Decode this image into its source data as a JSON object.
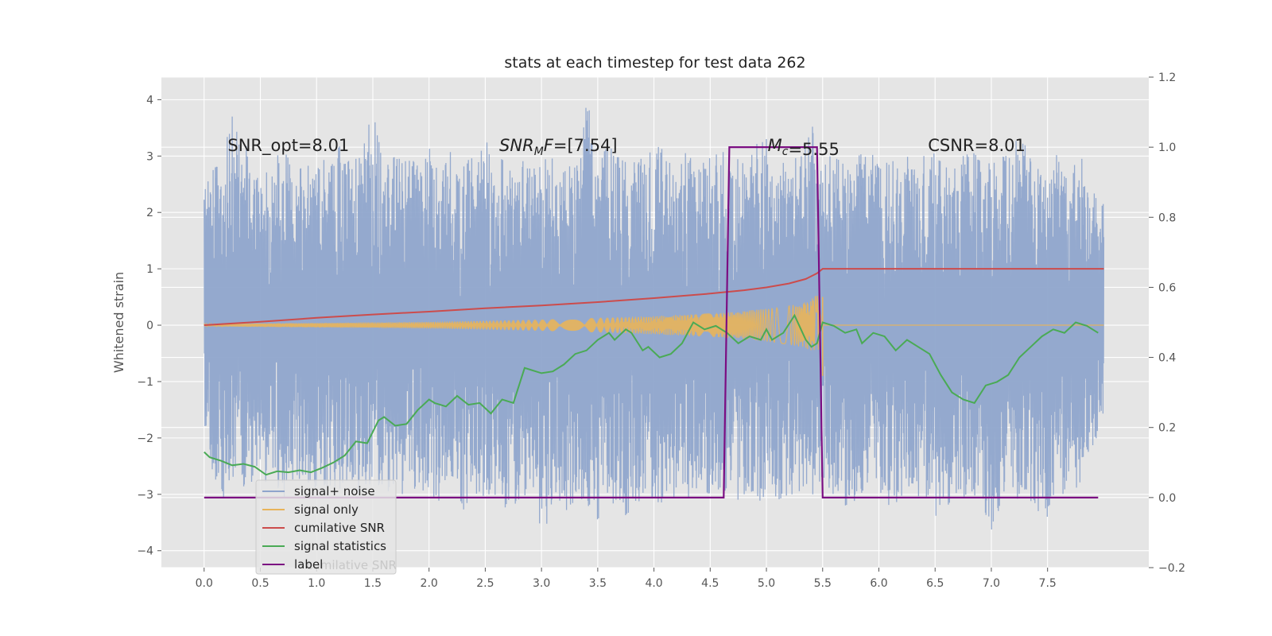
{
  "chart_data": {
    "type": "line",
    "title": "stats at each timestep for test data 262",
    "ylabel": "Whitened strain",
    "xlim": [
      -0.38,
      8.4
    ],
    "xticks": [
      0.0,
      0.5,
      1.0,
      1.5,
      2.0,
      2.5,
      3.0,
      3.5,
      4.0,
      4.5,
      5.0,
      5.5,
      6.0,
      6.5,
      7.0,
      7.5
    ],
    "xtick_labels": [
      "0.0",
      "0.5",
      "1.0",
      "1.5",
      "2.0",
      "2.5",
      "3.0",
      "3.5",
      "4.0",
      "4.5",
      "5.0",
      "5.5",
      "6.0",
      "6.5",
      "7.0",
      "7.5"
    ],
    "ylim_left": [
      -4.3,
      4.4
    ],
    "yticks_left": [
      -4,
      -3,
      -2,
      -1,
      0,
      1,
      2,
      3,
      4
    ],
    "ytick_labels_left": [
      "−4",
      "−3",
      "−2",
      "−1",
      "0",
      "1",
      "2",
      "3",
      "4"
    ],
    "ylim_right": [
      -0.2,
      1.2
    ],
    "yticks_right": [
      -0.2,
      0.0,
      0.2,
      0.4,
      0.6,
      0.8,
      1.0,
      1.2
    ],
    "ytick_labels_right": [
      "−0.2",
      "0.0",
      "0.2",
      "0.4",
      "0.6",
      "0.8",
      "1.0",
      "1.2"
    ],
    "grid": true,
    "legend_position": "lower-left",
    "annotations": [
      {
        "text": "SNR_opt=8.01",
        "x": 0.75,
        "y": 3.2
      },
      {
        "text": "SNR_MF=[7.54]",
        "x": 3.15,
        "y": 3.2,
        "math": true
      },
      {
        "text": "M_c=5.55",
        "x": 5.33,
        "y": 3.2,
        "math": true
      },
      {
        "text": "CSNR=8.01",
        "x": 6.87,
        "y": 3.2
      }
    ],
    "legend_hidden_text": "cumilative SNR",
    "series": [
      {
        "name": "signal+ noise",
        "axis": "left",
        "color": "#8fa5cc",
        "description_x_range": [
          0.0,
          8.0
        ],
        "x": [
          0.0,
          0.1,
          0.2,
          0.3,
          0.4,
          0.5,
          0.6,
          0.7,
          0.8,
          0.9,
          1.0,
          1.1,
          1.2,
          1.3,
          1.4,
          1.5,
          1.6,
          1.7,
          1.8,
          1.9,
          2.0,
          2.1,
          2.2,
          2.3,
          2.4,
          2.5,
          2.6,
          2.7,
          2.8,
          2.9,
          3.0,
          3.1,
          3.2,
          3.3,
          3.4,
          3.5,
          3.6,
          3.7,
          3.8,
          3.9,
          4.0,
          4.1,
          4.2,
          4.3,
          4.4,
          4.5,
          4.6,
          4.7,
          4.8,
          4.9,
          5.0,
          5.1,
          5.2,
          5.3,
          5.4,
          5.5,
          5.6,
          5.7,
          5.8,
          5.9,
          6.0,
          6.1,
          6.2,
          6.3,
          6.4,
          6.5,
          6.6,
          6.7,
          6.8,
          6.9,
          7.0,
          7.1,
          7.2,
          7.3,
          7.4,
          7.5,
          7.6,
          7.7,
          7.8,
          7.9,
          8.0
        ],
        "upper": [
          2.7,
          2.8,
          3.4,
          4.0,
          2.9,
          2.6,
          2.8,
          3.3,
          2.7,
          2.9,
          2.8,
          3.0,
          3.2,
          2.9,
          3.1,
          3.85,
          2.8,
          3.0,
          2.9,
          3.0,
          3.15,
          2.8,
          3.1,
          2.9,
          3.0,
          3.3,
          2.9,
          3.0,
          3.1,
          2.8,
          3.0,
          3.1,
          2.9,
          3.1,
          4.1,
          3.1,
          3.3,
          3.0,
          2.9,
          3.3,
          3.7,
          2.9,
          3.0,
          3.1,
          2.8,
          3.0,
          3.1,
          2.9,
          3.0,
          3.2,
          3.3,
          3.1,
          3.0,
          3.1,
          3.6,
          2.8,
          3.1,
          2.9,
          3.0,
          3.2,
          2.8,
          3.0,
          3.1,
          2.9,
          3.0,
          3.1,
          3.0,
          2.8,
          3.2,
          2.9,
          3.0,
          3.1,
          3.3,
          3.2,
          2.9,
          3.0,
          3.1,
          2.8,
          3.0,
          2.4,
          2.4
        ],
        "lower": [
          -1.7,
          -2.9,
          -3.1,
          -2.7,
          -3.0,
          -2.8,
          -2.9,
          -3.1,
          -2.7,
          -3.1,
          -3.2,
          -2.9,
          -3.0,
          -2.8,
          -3.1,
          -2.9,
          -3.0,
          -3.2,
          -2.9,
          -3.0,
          -3.2,
          -3.1,
          -2.9,
          -3.3,
          -3.0,
          -3.1,
          -3.0,
          -3.3,
          -3.2,
          -3.0,
          -3.9,
          -3.1,
          -3.3,
          -3.2,
          -3.4,
          -3.5,
          -3.2,
          -3.1,
          -3.7,
          -3.0,
          -3.1,
          -3.2,
          -3.0,
          -3.1,
          -2.9,
          -3.0,
          -3.1,
          -3.0,
          -3.2,
          -3.3,
          -3.0,
          -3.1,
          -3.0,
          -3.0,
          -3.1,
          -2.9,
          -3.0,
          -3.2,
          -3.1,
          -3.0,
          -3.1,
          -3.2,
          -3.1,
          -3.0,
          -3.1,
          -3.4,
          -3.2,
          -3.1,
          -3.0,
          -3.2,
          -3.7,
          -3.1,
          -3.2,
          -3.1,
          -3.3,
          -3.4,
          -3.1,
          -3.0,
          -2.9,
          -2.2,
          -1.6
        ]
      },
      {
        "name": "signal only",
        "axis": "left",
        "color": "#e8b45a",
        "x": [
          0.0,
          0.5,
          1.0,
          1.5,
          2.0,
          2.5,
          3.0,
          3.5,
          4.0,
          4.3,
          4.6,
          4.9,
          5.1,
          5.3,
          5.4,
          5.45,
          5.5,
          6.0,
          7.0,
          8.0
        ],
        "amplitude": [
          0.02,
          0.03,
          0.04,
          0.05,
          0.06,
          0.08,
          0.1,
          0.13,
          0.16,
          0.19,
          0.22,
          0.27,
          0.31,
          0.38,
          0.45,
          0.58,
          0.0,
          0.0,
          0.0,
          0.0
        ]
      },
      {
        "name": "cumilative SNR",
        "axis": "left",
        "color": "#cc4c4c",
        "x": [
          0.0,
          0.5,
          1.0,
          1.5,
          2.0,
          2.5,
          3.0,
          3.5,
          4.0,
          4.5,
          4.8,
          5.0,
          5.2,
          5.35,
          5.45,
          5.5,
          6.0,
          7.0,
          8.0
        ],
        "y": [
          0.0,
          0.06,
          0.13,
          0.19,
          0.24,
          0.3,
          0.35,
          0.41,
          0.48,
          0.56,
          0.62,
          0.67,
          0.74,
          0.82,
          0.92,
          1.0,
          1.0,
          1.0,
          1.0
        ]
      },
      {
        "name": "signal statistics",
        "axis": "right",
        "color": "#4aaa55",
        "x": [
          0.0,
          0.05,
          0.15,
          0.25,
          0.35,
          0.45,
          0.55,
          0.65,
          0.75,
          0.85,
          0.95,
          1.05,
          1.15,
          1.25,
          1.35,
          1.45,
          1.55,
          1.6,
          1.7,
          1.8,
          1.9,
          2.0,
          2.05,
          2.15,
          2.25,
          2.35,
          2.45,
          2.55,
          2.65,
          2.75,
          2.85,
          2.9,
          3.0,
          3.1,
          3.2,
          3.3,
          3.4,
          3.5,
          3.6,
          3.65,
          3.75,
          3.8,
          3.9,
          3.95,
          4.05,
          4.15,
          4.25,
          4.35,
          4.45,
          4.55,
          4.65,
          4.75,
          4.85,
          4.95,
          5.0,
          5.05,
          5.15,
          5.25,
          5.35,
          5.4,
          5.45,
          5.5,
          5.6,
          5.7,
          5.8,
          5.85,
          5.95,
          6.05,
          6.15,
          6.25,
          6.35,
          6.45,
          6.55,
          6.65,
          6.75,
          6.85,
          6.95,
          7.05,
          7.15,
          7.25,
          7.35,
          7.45,
          7.55,
          7.65,
          7.75,
          7.85,
          7.95
        ],
        "y": [
          0.13,
          0.115,
          0.105,
          0.092,
          0.096,
          0.088,
          0.065,
          0.075,
          0.072,
          0.078,
          0.072,
          0.085,
          0.1,
          0.12,
          0.16,
          0.155,
          0.22,
          0.23,
          0.205,
          0.21,
          0.25,
          0.28,
          0.27,
          0.26,
          0.29,
          0.265,
          0.27,
          0.24,
          0.28,
          0.27,
          0.37,
          0.365,
          0.355,
          0.36,
          0.38,
          0.41,
          0.42,
          0.45,
          0.47,
          0.45,
          0.48,
          0.47,
          0.42,
          0.43,
          0.4,
          0.41,
          0.44,
          0.5,
          0.48,
          0.49,
          0.47,
          0.44,
          0.46,
          0.45,
          0.48,
          0.45,
          0.47,
          0.52,
          0.45,
          0.43,
          0.44,
          0.5,
          0.49,
          0.47,
          0.48,
          0.44,
          0.47,
          0.46,
          0.42,
          0.45,
          0.43,
          0.41,
          0.35,
          0.3,
          0.28,
          0.27,
          0.32,
          0.33,
          0.35,
          0.4,
          0.43,
          0.46,
          0.48,
          0.47,
          0.5,
          0.49,
          0.47
        ]
      },
      {
        "name": "label",
        "axis": "right",
        "color": "#7b0d82",
        "x": [
          0.0,
          4.62,
          4.67,
          5.45,
          5.5,
          7.95
        ],
        "y": [
          0.0,
          0.0,
          1.0,
          1.0,
          0.0,
          0.0
        ]
      }
    ]
  }
}
